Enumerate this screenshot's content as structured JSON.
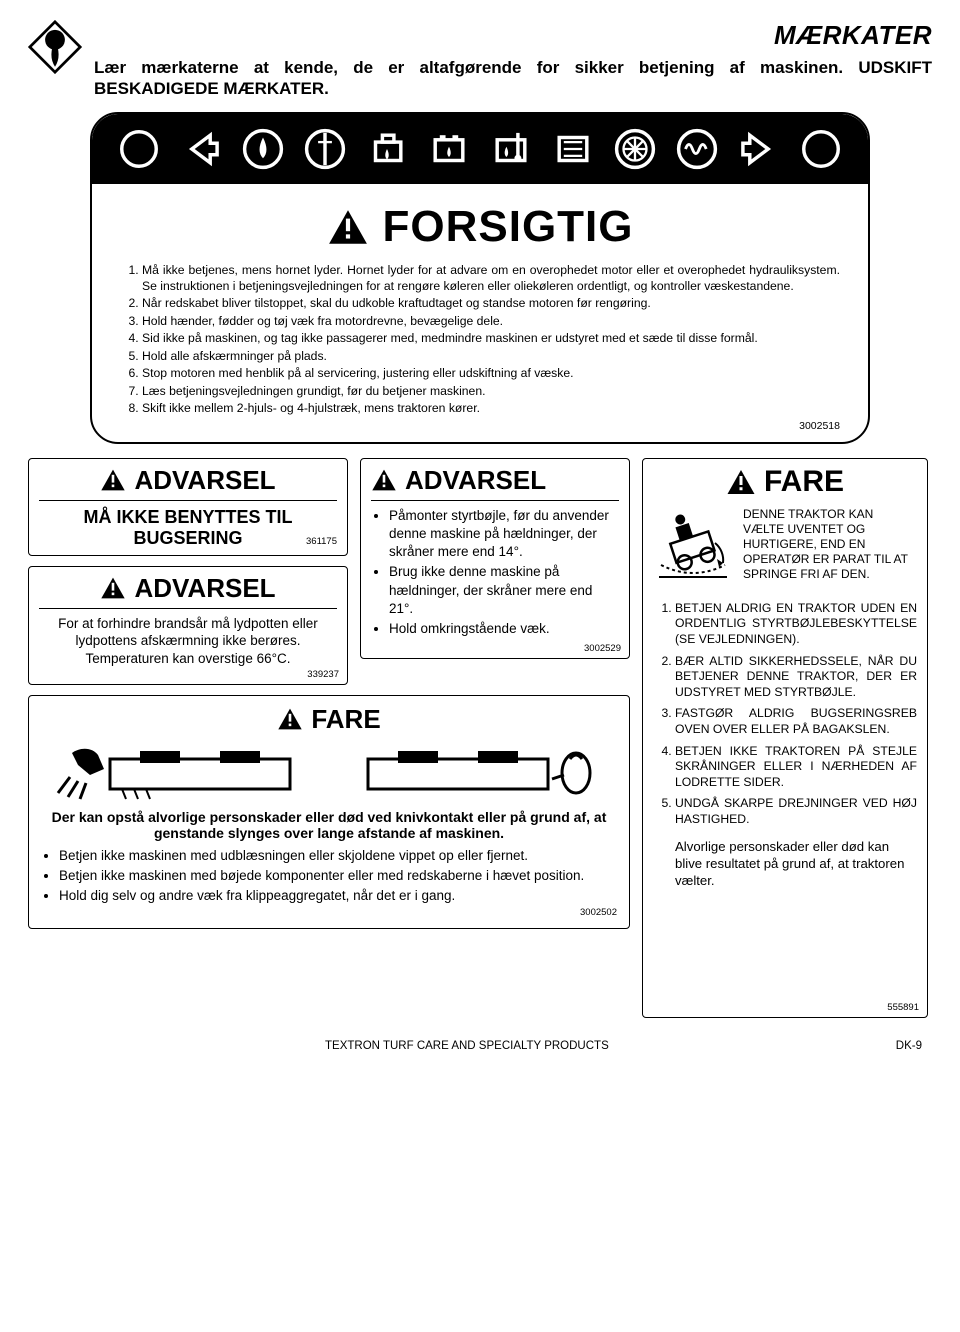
{
  "header": {
    "section_title": "MÆRKATER",
    "intro": "Lær mærkaterne at kende, de er altafgørende for sikker betjening af maskinen. UDSKIFT BESKADIGEDE MÆRKATER."
  },
  "main_caution": {
    "title": "FORSIGTIG",
    "part_no": "3002518",
    "items": [
      "Må ikke betjenes, mens hornet lyder. Hornet lyder for at advare om en overophedet motor eller et overophedet hydrauliksystem. Se instruktionen i betjeningsvejledningen for at rengøre køleren eller oliekøleren ordentligt, og kontroller væskestandene.",
      "Når redskabet bliver tilstoppet, skal du udkoble kraftudtaget og standse motoren før rengøring.",
      "Hold hænder, fødder og tøj væk fra motordrevne, bevægelige dele.",
      "Sid ikke på maskinen, og tag ikke passagerer med, medmindre maskinen er udstyret med et sæde til disse formål.",
      "Hold alle afskærmninger på plads.",
      "Stop motoren med henblik på al servicering, justering eller udskiftning af væske.",
      "Læs betjeningsvejledningen grundigt, før du betjener maskinen.",
      "Skift ikke mellem 2-hjuls- og 4-hjulstræk, mens traktoren kører."
    ]
  },
  "towing": {
    "title": "ADVARSEL",
    "text": "MÅ IKKE BENYTTES TIL BUGSERING",
    "part_no": "361175"
  },
  "burn": {
    "title": "ADVARSEL",
    "text": "For at forhindre brandsår må lydpotten eller lydpottens afskærmning ikke berøres.\nTemperaturen kan overstige 66°C.",
    "part_no": "339237"
  },
  "blade_danger": {
    "title": "FARE",
    "lead": "Der kan opstå alvorlige personskader eller død ved knivkontakt eller på grund af, at genstande slynges over lange afstande af maskinen.",
    "bullets": [
      "Betjen ikke maskinen med udblæsningen eller skjoldene vippet op eller fjernet.",
      "Betjen ikke maskinen med bøjede komponenter eller med redskaberne i hævet position.",
      "Hold dig selv og andre væk fra klippeaggregatet, når det er i gang."
    ],
    "part_no": "3002502"
  },
  "slope": {
    "title": "ADVARSEL",
    "bullets": [
      "Påmonter styrtbøjle, før du anvender denne maskine på hældninger, der skråner mere end 14°.",
      "Brug ikke denne maskine på hældninger, der skråner mere end 21°.",
      "Hold omkringstående væk."
    ],
    "part_no": "3002529"
  },
  "rollover": {
    "title": "FARE",
    "caption": "DENNE TRAKTOR KAN VÆLTE UVENTET OG HURTIGERE, END EN OPERATØR ER PARAT TIL AT SPRINGE FRI AF DEN.",
    "items": [
      "BETJEN ALDRIG EN TRAKTOR UDEN EN ORDENTLIG STYRT­BØJLEBESKYTTELSE (SE VEJLEDNINGEN).",
      "BÆR ALTID SIKKERHEDSSELE, NÅR DU BETJENER DENNE TRAKTOR, DER ER UDSTYRET MED STYRTBØJLE.",
      "FASTGØR ALDRIG BUGSERING­SREB OVEN OVER ELLER PÅ BAGAKSLEN.",
      "BETJEN IKKE TRAKTOREN PÅ STEJLE SKRÅNINGER ELLER I NÆRHEDEN AF LODRETTE SIDER.",
      "UNDGÅ SKARPE DREJNINGER VED HØJ HASTIGHED."
    ],
    "footer": "Alvorlige personskader eller død kan blive resul­tatet på grund af, at trak­toren vælter.",
    "part_no": "555891"
  },
  "footer": {
    "center": "TEXTRON TURF CARE AND SPECIALTY PRODUCTS",
    "right": "DK-9"
  },
  "svg": {
    "triangle_black": "<svg viewBox='0 0 40 36'><polygon points='20,2 38,34 2,34' fill='#000'/><rect x='18' y='10' width='4' height='12' fill='#fff'/><rect x='18' y='25' width='4' height='4' fill='#fff'/></svg>",
    "logo": "<svg viewBox='0 0 60 60'><polygon points='30,2 58,30 30,58 2,30' fill='#fff' stroke='#000' stroke-width='3'/><circle cx='30' cy='22' r='11' fill='#000'/><path d='M30 22 Q 22 40 30 52 Q 38 40 30 22' fill='#000'/></svg>",
    "band_circle": "<svg viewBox='0 0 40 40'><circle cx='20' cy='20' r='15' fill='none' stroke='#fff' stroke-width='3'/></svg>",
    "band_arrow_l": "<svg viewBox='0 0 40 40'><path d='M28 8 L12 20 L28 32 L28 25 L34 25 L34 15 L28 15 Z' fill='none' stroke='#fff' stroke-width='3'/></svg>",
    "band_arrow_r": "<svg viewBox='0 0 40 40'><path d='M12 8 L28 20 L12 32 L12 25 L6 25 L6 15 L12 15 Z' fill='none' stroke='#fff' stroke-width='3'/></svg>",
    "band_droplet": "<svg viewBox='0 0 40 40'><circle cx='20' cy='20' r='16' fill='none' stroke='#fff' stroke-width='3'/><path d='M20 10 Q14 22 20 28 Q26 22 20 10' fill='#fff'/></svg>",
    "band_gauge1": "<svg viewBox='0 0 40 40'><circle cx='20' cy='20' r='16' fill='none' stroke='#fff' stroke-width='3'/><line x1='20' y1='6' x2='20' y2='34' stroke='#fff' stroke-width='3'/><path d='M14 14 L26 14' stroke='#fff' stroke-width='2'/></svg>",
    "band_oilcan": "<svg viewBox='0 0 40 40'><rect x='10' y='14' width='22' height='16' fill='none' stroke='#fff' stroke-width='3'/><rect x='16' y='8' width='10' height='6' fill='none' stroke='#fff' stroke-width='3'/><path d='M20 20 Q17 26 20 29 Q23 26 20 20' fill='#fff'/></svg>",
    "band_battery": "<svg viewBox='0 0 40 40'><rect x='8' y='12' width='24' height='18' fill='none' stroke='#fff' stroke-width='3'/><rect x='12' y='8' width='5' height='4' fill='#fff'/><rect x='23' y='8' width='5' height='4' fill='#fff'/><path d='M20 18 Q17 24 20 27 Q23 24 20 18' fill='#fff'/></svg>",
    "band_temp": "<svg viewBox='0 0 40 40'><rect x='8' y='12' width='24' height='18' fill='none' stroke='#fff' stroke-width='3'/><line x1='26' y1='6' x2='26' y2='26' stroke='#fff' stroke-width='3'/><circle cx='26' cy='28' r='3' fill='#fff'/><path d='M16 18 Q13 24 16 27 Q19 24 16 18' fill='#fff'/></svg>",
    "band_radiator": "<svg viewBox='0 0 40 40'><rect x='8' y='10' width='24' height='20' fill='none' stroke='#fff' stroke-width='3'/><line x1='12' y1='14' x2='28' y2='14' stroke='#fff' stroke-width='2'/><line x1='12' y1='20' x2='28' y2='20' stroke='#fff' stroke-width='2'/><line x1='12' y1='26' x2='28' y2='26' stroke='#fff' stroke-width='2'/></svg>",
    "band_fan": "<svg viewBox='0 0 40 40'><circle cx='20' cy='20' r='16' fill='none' stroke='#fff' stroke-width='3'/><circle cx='20' cy='20' r='10' fill='none' stroke='#fff' stroke-width='2'/><line x1='10' y1='20' x2='30' y2='20' stroke='#fff' stroke-width='2'/><line x1='20' y1='10' x2='20' y2='30' stroke='#fff' stroke-width='2'/><line x1='13' y1='13' x2='27' y2='27' stroke='#fff' stroke-width='2'/><line x1='27' y1='13' x2='13' y2='27' stroke='#fff' stroke-width='2'/></svg>",
    "band_coil": "<svg viewBox='0 0 40 40'><circle cx='20' cy='20' r='16' fill='none' stroke='#fff' stroke-width='3'/><path d='M10 20 Q13 12 16 20 Q19 28 22 20 Q25 12 28 20' fill='none' stroke='#fff' stroke-width='2.5'/></svg>",
    "mower_left": "<svg viewBox='0 0 270 64'><rect x='60' y='18' width='180' height='30' fill='none' stroke='#000' stroke-width='3'/><rect x='90' y='10' width='40' height='12' fill='#000'/><rect x='170' y='10' width='40' height='12' fill='#000'/><path d='M72 48 L76 58 M84 48 L88 58 M96 48 L100 58' stroke='#000' stroke-width='2'/><path d='M22 12 C 30 6, 42 6, 48 14 L54 28 L40 34 L28 24 Z' fill='#000'/><path d='M20 36 L8 52 M28 40 L18 56 M36 42 L30 58' stroke='#000' stroke-width='3'/><line x1='60' y1='48' x2='240' y2='48' stroke='#000' stroke-width='3'/></svg>",
    "mower_right": "<svg viewBox='0 0 270 64'><rect x='30' y='18' width='180' height='30' fill='none' stroke='#000' stroke-width='3'/><rect x='60' y='10' width='40' height='12' fill='#000'/><rect x='140' y='10' width='40' height='12' fill='#000'/><line x1='30' y1='48' x2='210' y2='48' stroke='#000' stroke-width='3'/><ellipse cx='238' cy='32' rx='14' ry='20' fill='none' stroke='#000' stroke-width='3'/><path d='M232 18 Q238 10 244 18' fill='none' stroke='#000' stroke-width='3'/><line x1='214' y1='38' x2='226' y2='34' stroke='#000' stroke-width='3'/></svg>",
    "rollover_pic": "<svg viewBox='0 0 80 84'><g transform='rotate(-18 40 42)'><rect x='20' y='30' width='40' height='20' fill='none' stroke='#000' stroke-width='2.5'/><circle cx='28' cy='52' r='7' fill='none' stroke='#000' stroke-width='2.5'/><circle cx='52' cy='52' r='7' fill='none' stroke='#000' stroke-width='2.5'/><rect x='30' y='16' width='14' height='14' fill='#000'/><circle cx='37' cy='10' r='5' fill='#000'/></g><path d='M8 58 Q 40 74 72 58' fill='none' stroke='#000' stroke-width='2' stroke-dasharray='3 3'/><line x1='6' y1='70' x2='74' y2='70' stroke='#000' stroke-width='2'/><path d='M62 36 A 22 22 0 0 1 70 56' fill='none' stroke='#000' stroke-width='2'/><polygon points='70,56 64,52 66,60' fill='#000'/></svg>"
  }
}
